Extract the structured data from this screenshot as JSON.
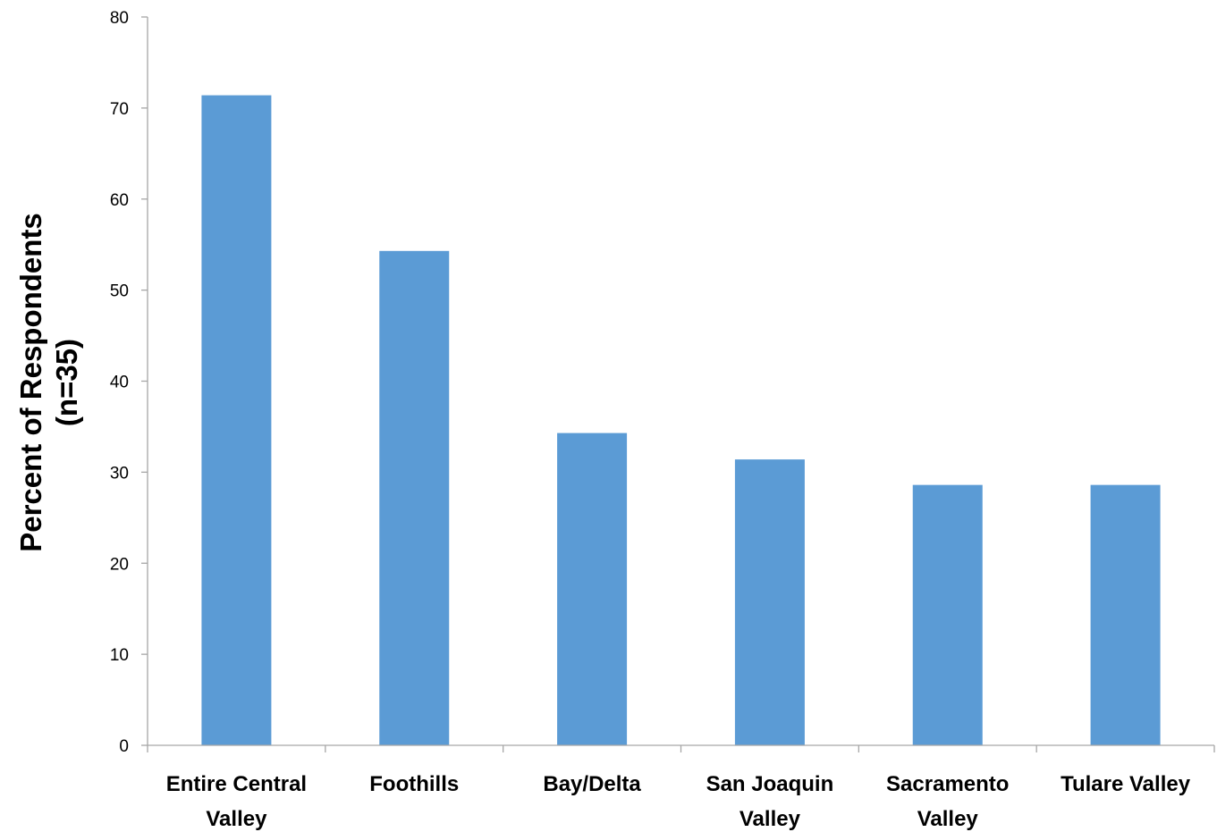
{
  "chart_data": {
    "type": "bar",
    "categories": [
      [
        "Entire Central",
        "Valley"
      ],
      [
        "Foothills"
      ],
      [
        "Bay/Delta"
      ],
      [
        "San Joaquin",
        "Valley"
      ],
      [
        "Sacramento",
        "Valley"
      ],
      [
        "Tulare Valley"
      ]
    ],
    "values": [
      71.4,
      54.3,
      34.3,
      31.4,
      28.6,
      28.6
    ],
    "title": "",
    "xlabel": "",
    "ylabel": [
      "Percent of Respondents",
      "(n=35)"
    ],
    "ylim": [
      0,
      80
    ],
    "yticks": [
      0,
      10,
      20,
      30,
      40,
      50,
      60,
      70,
      80
    ],
    "grid": false,
    "legend": "none",
    "colors": {
      "bar": "#5b9bd5",
      "axis": "#a6a6a6",
      "text": "#000000"
    }
  }
}
